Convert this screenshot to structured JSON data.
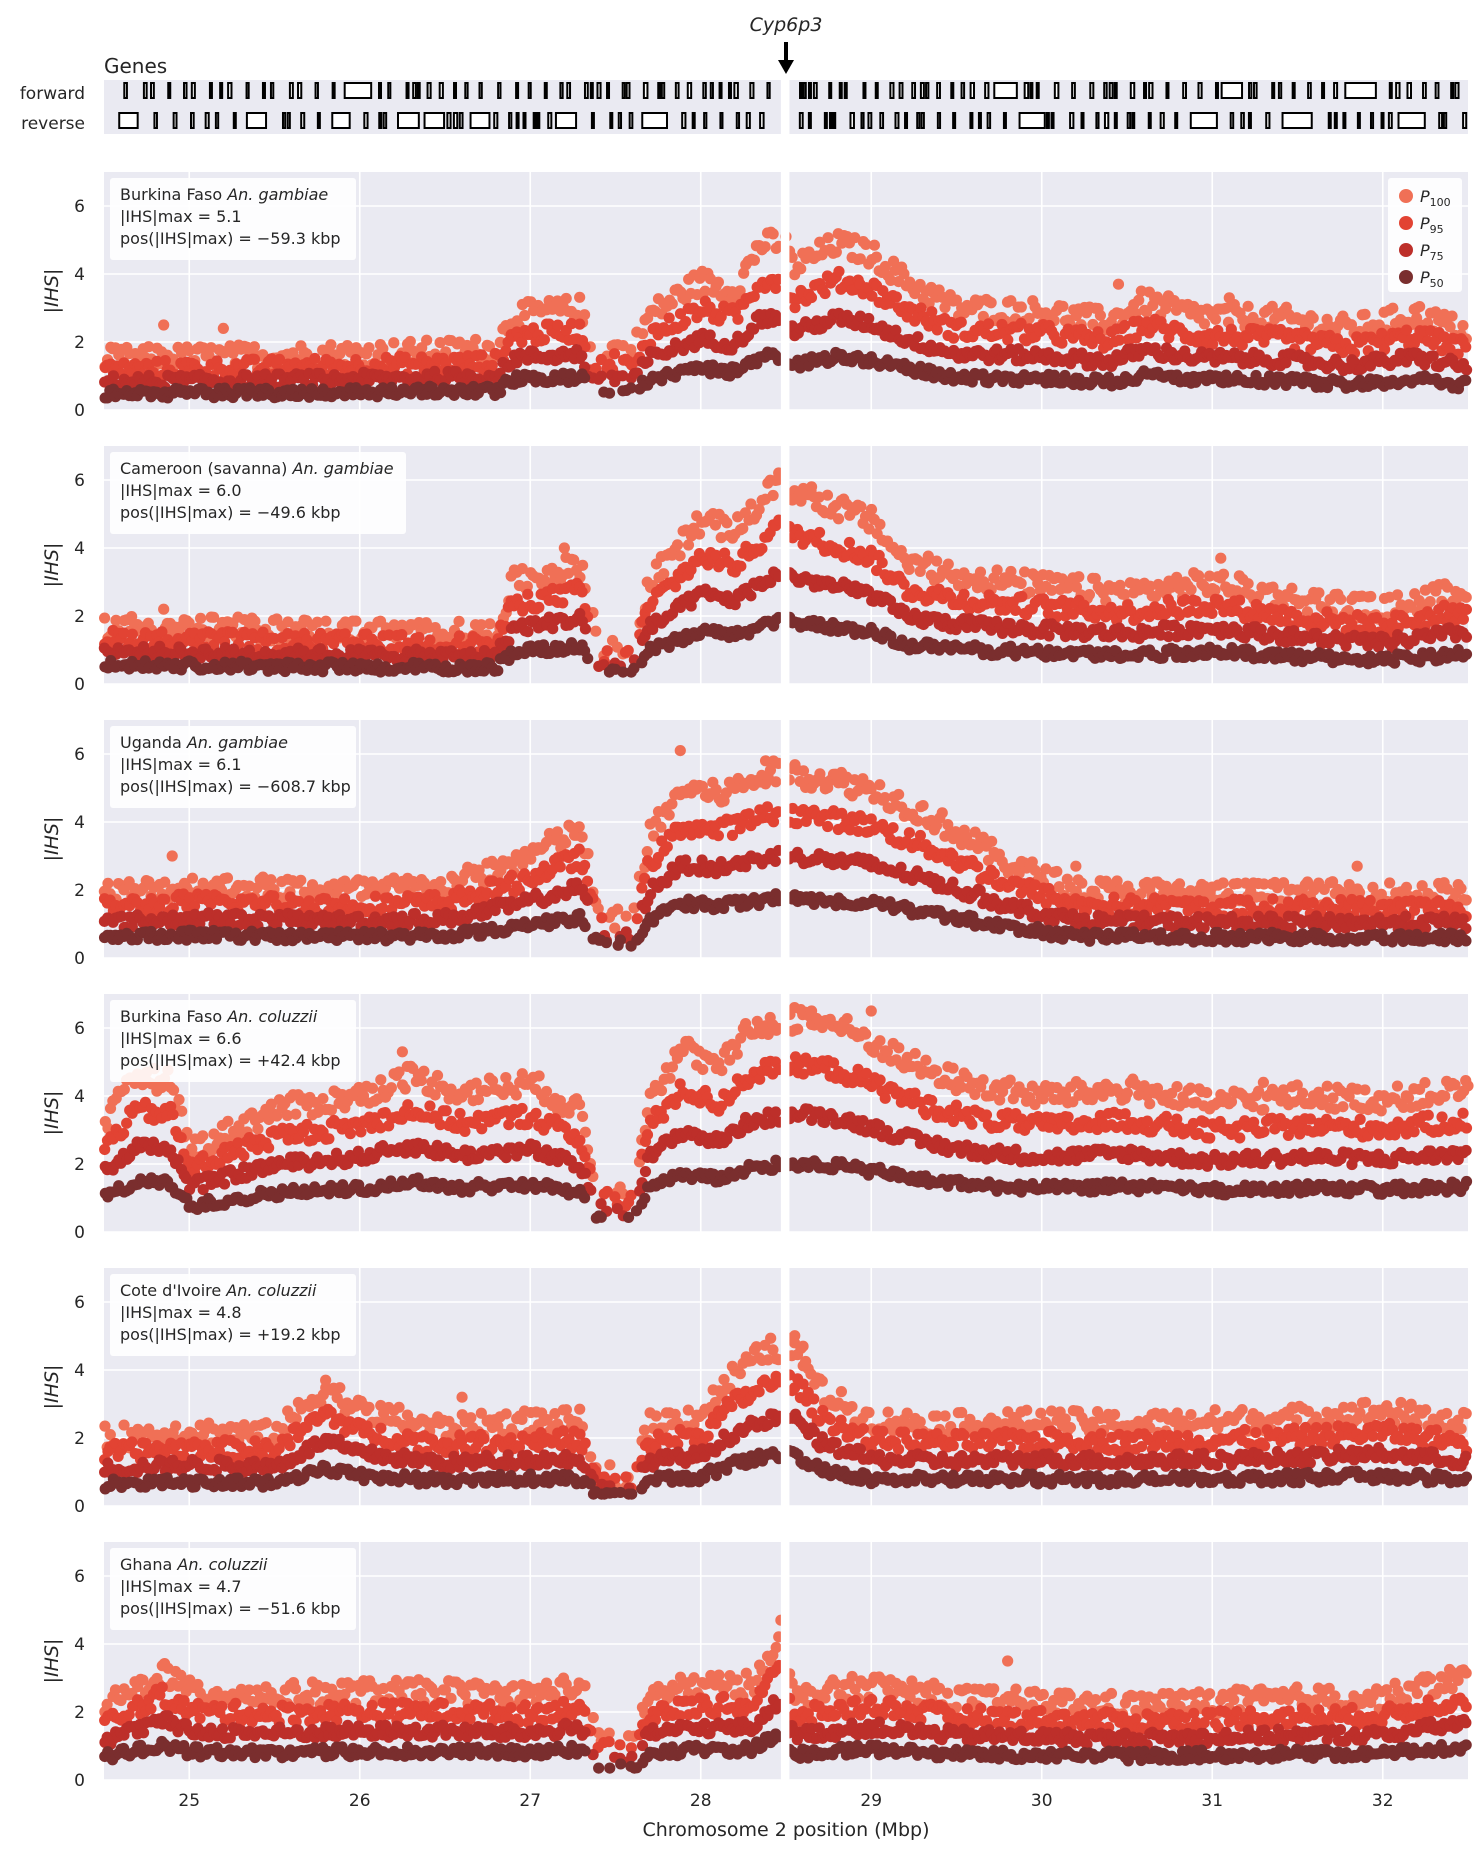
{
  "chart_data": {
    "type": "scatter",
    "gene_track": {
      "title": "Genes",
      "forward_label": "forward",
      "reverse_label": "reverse",
      "marker": "Cyp6p3",
      "marker_x": 28.5
    },
    "x_axis": {
      "label": "Chromosome 2 position (Mbp)",
      "xlim": [
        24.5,
        32.5
      ],
      "ticks": [
        "25",
        "26",
        "27",
        "28",
        "29",
        "30",
        "31",
        "32"
      ]
    },
    "y_axis": {
      "label": "|IHS|",
      "ylim": [
        0,
        7
      ],
      "ticks": [
        "0",
        "2",
        "4",
        "6"
      ]
    },
    "legend": {
      "placement": "top-right",
      "entries": [
        {
          "base": "P",
          "sub": "100",
          "color": "#f07056"
        },
        {
          "base": "P",
          "sub": "95",
          "color": "#e24333"
        },
        {
          "base": "P",
          "sub": "75",
          "color": "#bd2f2a"
        },
        {
          "base": "P",
          "sub": "50",
          "color": "#7a2e2e"
        }
      ]
    },
    "gap": [
      28.47,
      28.52
    ],
    "panels": [
      {
        "name": "Burkina Faso",
        "species": "An. gambiae",
        "line_max": "|IHS|max = 5.1",
        "line_pos": "pos(|IHS|max) = −59.3 kbp",
        "profile": [
          [
            24.5,
            1.5
          ],
          [
            25.5,
            1.6
          ],
          [
            26.3,
            1.7
          ],
          [
            26.8,
            1.8
          ],
          [
            26.9,
            2.8
          ],
          [
            27.3,
            3.0
          ],
          [
            27.35,
            1.8
          ],
          [
            27.6,
            1.8
          ],
          [
            27.7,
            2.8
          ],
          [
            28.0,
            3.8
          ],
          [
            28.2,
            3.5
          ],
          [
            28.35,
            4.9
          ],
          [
            28.45,
            4.9
          ],
          [
            28.55,
            4.2
          ],
          [
            28.8,
            4.9
          ],
          [
            29.0,
            4.6
          ],
          [
            29.2,
            3.8
          ],
          [
            29.5,
            3.0
          ],
          [
            30.0,
            2.9
          ],
          [
            30.4,
            2.6
          ],
          [
            30.6,
            3.2
          ],
          [
            30.9,
            2.8
          ],
          [
            31.4,
            2.7
          ],
          [
            31.8,
            2.4
          ],
          [
            32.2,
            2.8
          ],
          [
            32.5,
            2.3
          ]
        ],
        "spikes": [
          [
            24.85,
            2.5
          ],
          [
            25.2,
            2.4
          ],
          [
            28.5,
            5.1
          ],
          [
            30.45,
            3.7
          ],
          [
            31.1,
            3.3
          ],
          [
            32.2,
            3.0
          ]
        ]
      },
      {
        "name": "Cameroon (savanna)",
        "species": "An. gambiae",
        "line_max": "|IHS|max = 6.0",
        "line_pos": "pos(|IHS|max) = −49.6 kbp",
        "profile": [
          [
            24.5,
            1.7
          ],
          [
            25.5,
            1.6
          ],
          [
            26.5,
            1.5
          ],
          [
            26.8,
            1.5
          ],
          [
            26.9,
            3.0
          ],
          [
            27.3,
            3.5
          ],
          [
            27.4,
            1.0
          ],
          [
            27.6,
            1.0
          ],
          [
            27.7,
            3.0
          ],
          [
            28.0,
            4.8
          ],
          [
            28.2,
            4.5
          ],
          [
            28.45,
            5.9
          ],
          [
            28.7,
            5.4
          ],
          [
            29.0,
            4.8
          ],
          [
            29.2,
            3.6
          ],
          [
            29.5,
            3.2
          ],
          [
            30.0,
            2.9
          ],
          [
            30.5,
            2.7
          ],
          [
            31.0,
            3.0
          ],
          [
            31.5,
            2.5
          ],
          [
            32.0,
            2.2
          ],
          [
            32.5,
            2.8
          ]
        ],
        "spikes": [
          [
            24.85,
            2.2
          ],
          [
            27.2,
            4.0
          ],
          [
            28.45,
            6.0
          ],
          [
            28.65,
            5.8
          ],
          [
            31.05,
            3.7
          ]
        ]
      },
      {
        "name": "Uganda",
        "species": "An. gambiae",
        "line_max": "|IHS|max = 6.1",
        "line_pos": "pos(|IHS|max) = −608.7 kbp",
        "profile": [
          [
            24.5,
            1.9
          ],
          [
            25.0,
            2.1
          ],
          [
            26.0,
            2.0
          ],
          [
            26.5,
            2.1
          ],
          [
            26.9,
            2.8
          ],
          [
            27.3,
            3.8
          ],
          [
            27.4,
            1.2
          ],
          [
            27.6,
            1.2
          ],
          [
            27.7,
            3.6
          ],
          [
            27.9,
            5.0
          ],
          [
            28.1,
            4.8
          ],
          [
            28.3,
            5.2
          ],
          [
            28.45,
            5.5
          ],
          [
            28.7,
            5.3
          ],
          [
            29.0,
            5.0
          ],
          [
            29.4,
            4.0
          ],
          [
            29.8,
            2.8
          ],
          [
            30.2,
            2.0
          ],
          [
            31.0,
            1.9
          ],
          [
            32.0,
            1.9
          ],
          [
            32.5,
            1.9
          ]
        ],
        "spikes": [
          [
            24.9,
            3.0
          ],
          [
            27.88,
            6.1
          ],
          [
            28.38,
            5.8
          ],
          [
            28.55,
            5.6
          ],
          [
            30.2,
            2.7
          ],
          [
            31.5,
            2.0
          ],
          [
            31.85,
            2.7
          ]
        ]
      },
      {
        "name": "Burkina Faso",
        "species": "An. coluzzii",
        "line_max": "|IHS|max = 6.6",
        "line_pos": "pos(|IHS|max) = +42.4 kbp",
        "profile": [
          [
            24.5,
            3.2
          ],
          [
            24.7,
            4.6
          ],
          [
            24.9,
            4.4
          ],
          [
            25.0,
            2.4
          ],
          [
            25.5,
            3.6
          ],
          [
            26.0,
            4.0
          ],
          [
            26.3,
            4.6
          ],
          [
            26.6,
            4.1
          ],
          [
            27.0,
            4.4
          ],
          [
            27.3,
            3.5
          ],
          [
            27.4,
            1.2
          ],
          [
            27.6,
            1.2
          ],
          [
            27.7,
            4.0
          ],
          [
            27.9,
            5.4
          ],
          [
            28.1,
            4.8
          ],
          [
            28.3,
            6.0
          ],
          [
            28.6,
            6.3
          ],
          [
            28.8,
            6.1
          ],
          [
            29.0,
            5.6
          ],
          [
            29.3,
            4.8
          ],
          [
            29.6,
            4.3
          ],
          [
            30.0,
            4.0
          ],
          [
            30.5,
            4.2
          ],
          [
            31.0,
            3.8
          ],
          [
            31.5,
            4.0
          ],
          [
            32.0,
            3.9
          ],
          [
            32.5,
            4.2
          ]
        ],
        "spikes": [
          [
            24.75,
            4.7
          ],
          [
            26.25,
            5.3
          ],
          [
            28.55,
            6.6
          ],
          [
            28.65,
            6.5
          ],
          [
            29.0,
            6.5
          ],
          [
            31.3,
            4.4
          ],
          [
            32.5,
            4.3
          ]
        ]
      },
      {
        "name": "Cote d'Ivoire",
        "species": "An. coluzzii",
        "line_max": "|IHS|max = 4.8",
        "line_pos": "pos(|IHS|max) = +19.2 kbp",
        "profile": [
          [
            24.5,
            2.0
          ],
          [
            25.0,
            2.2
          ],
          [
            25.5,
            2.1
          ],
          [
            25.8,
            3.5
          ],
          [
            26.0,
            2.8
          ],
          [
            26.5,
            2.3
          ],
          [
            27.0,
            2.5
          ],
          [
            27.3,
            2.5
          ],
          [
            27.4,
            0.9
          ],
          [
            27.6,
            0.9
          ],
          [
            27.7,
            2.4
          ],
          [
            28.0,
            2.7
          ],
          [
            28.2,
            3.9
          ],
          [
            28.4,
            4.6
          ],
          [
            28.55,
            4.7
          ],
          [
            28.7,
            3.4
          ],
          [
            29.0,
            2.5
          ],
          [
            29.5,
            2.4
          ],
          [
            30.0,
            2.5
          ],
          [
            30.5,
            2.4
          ],
          [
            31.0,
            2.5
          ],
          [
            31.5,
            2.6
          ],
          [
            32.0,
            2.8
          ],
          [
            32.5,
            2.4
          ]
        ],
        "spikes": [
          [
            25.8,
            3.7
          ],
          [
            26.6,
            3.2
          ],
          [
            28.55,
            4.8
          ],
          [
            28.6,
            4.7
          ]
        ]
      },
      {
        "name": "Ghana",
        "species": "An. coluzzii",
        "line_max": "|IHS|max = 4.7",
        "line_pos": "pos(|IHS|max) = −51.6 kbp",
        "profile": [
          [
            24.5,
            2.1
          ],
          [
            24.85,
            3.2
          ],
          [
            25.0,
            2.6
          ],
          [
            25.5,
            2.5
          ],
          [
            26.0,
            2.6
          ],
          [
            26.5,
            2.6
          ],
          [
            27.0,
            2.5
          ],
          [
            27.3,
            2.8
          ],
          [
            27.4,
            1.1
          ],
          [
            27.6,
            1.1
          ],
          [
            27.7,
            2.5
          ],
          [
            28.0,
            2.8
          ],
          [
            28.3,
            2.8
          ],
          [
            28.45,
            4.2
          ],
          [
            28.5,
            3.2
          ],
          [
            28.55,
            2.4
          ],
          [
            29.0,
            2.8
          ],
          [
            29.5,
            2.4
          ],
          [
            30.0,
            2.3
          ],
          [
            30.5,
            2.2
          ],
          [
            31.0,
            2.3
          ],
          [
            31.5,
            2.4
          ],
          [
            32.0,
            2.4
          ],
          [
            32.5,
            3.1
          ]
        ],
        "spikes": [
          [
            24.85,
            3.4
          ],
          [
            28.47,
            4.7
          ],
          [
            29.8,
            3.5
          ],
          [
            32.4,
            3.2
          ]
        ]
      }
    ]
  }
}
